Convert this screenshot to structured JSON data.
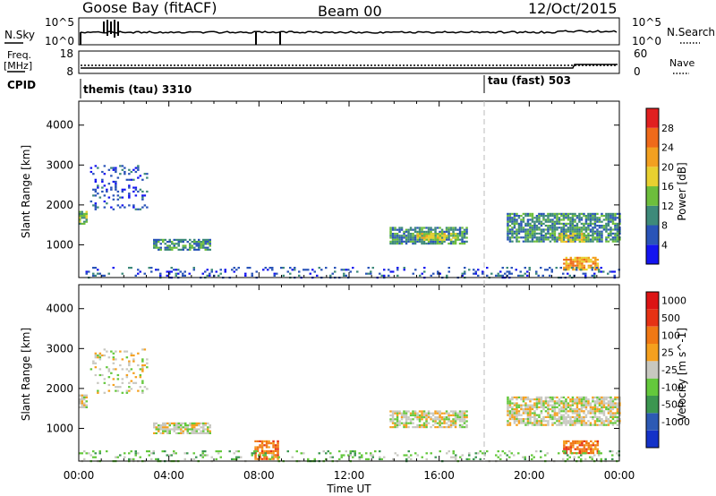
{
  "header": {
    "title": "Goose Bay (fitACF)",
    "beam": "Beam 00",
    "date": "12/Oct/2015"
  },
  "noise_panel": {
    "left_label": "N.Sky",
    "right_label": "N.Search",
    "left_ticks": [
      "10^5",
      "10^0"
    ],
    "right_ticks": [
      "10^5",
      "10^0"
    ]
  },
  "freq_panel": {
    "left_label_1": "Freq.",
    "left_label_2": "[MHz]",
    "right_label": "Nave",
    "left_ticks": [
      "18",
      "8"
    ],
    "right_ticks": [
      "60",
      "0"
    ]
  },
  "cpid": {
    "label": "CPID",
    "modes": [
      {
        "name": "themis (tau) 3310",
        "start_hour": 0
      },
      {
        "name": "tau (fast) 503",
        "start_hour": 18
      }
    ]
  },
  "chart_data": [
    {
      "type": "heatmap",
      "name": "power",
      "xlabel": "",
      "ylabel": "Slant Range [km]",
      "xlim": [
        0,
        24
      ],
      "ylim": [
        180,
        4600
      ],
      "y_ticks": [
        1000,
        2000,
        3000,
        4000
      ],
      "colorbar": {
        "label": "Power [dB]",
        "levels": [
          "4",
          "8",
          "12",
          "16",
          "20",
          "24",
          "28"
        ],
        "colors": [
          "#1414f0",
          "#2a54b8",
          "#3e8a7a",
          "#6dbe3c",
          "#e8d030",
          "#f2a020",
          "#ef6a1a",
          "#e02020"
        ]
      },
      "echo_regions": [
        {
          "t": [
            0.0,
            0.35
          ],
          "r": [
            1550,
            1850
          ],
          "level": 3
        },
        {
          "t": [
            0.5,
            3.0
          ],
          "r": [
            1900,
            3000
          ],
          "level": 1,
          "sparse": true
        },
        {
          "t": [
            3.3,
            5.8
          ],
          "r": [
            900,
            1150
          ],
          "level": 2
        },
        {
          "t": [
            13.8,
            17.2
          ],
          "r": [
            1050,
            1450
          ],
          "level": 2
        },
        {
          "t": [
            15.0,
            16.8
          ],
          "r": [
            1150,
            1300
          ],
          "level": 4
        },
        {
          "t": [
            19.0,
            24.0
          ],
          "r": [
            1100,
            1800
          ],
          "level": 2
        },
        {
          "t": [
            21.3,
            22.4
          ],
          "r": [
            1100,
            1300
          ],
          "level": 4
        },
        {
          "t": [
            21.5,
            23.0
          ],
          "r": [
            400,
            700
          ],
          "level": 5
        },
        {
          "t": [
            0.0,
            24.0
          ],
          "r": [
            180,
            450
          ],
          "level": 1,
          "sparse": true
        }
      ]
    },
    {
      "type": "heatmap",
      "name": "velocity",
      "xlabel": "Time UT",
      "ylabel": "Slant Range [km]",
      "xlim": [
        0,
        24
      ],
      "ylim": [
        180,
        4600
      ],
      "x_ticks": [
        "00:00",
        "04:00",
        "08:00",
        "12:00",
        "16:00",
        "20:00",
        "00:00"
      ],
      "y_ticks": [
        1000,
        2000,
        3000,
        4000
      ],
      "colorbar": {
        "label": "Velocity [m s^-1]",
        "levels": [
          "1000",
          "500",
          "100",
          "25",
          "-25",
          "-100",
          "-500",
          "-1000"
        ],
        "colors": [
          "#1432c8",
          "#2d5ab4",
          "#3c9650",
          "#64c83c",
          "#c8c8c0",
          "#f5a01e",
          "#f07814",
          "#e63214",
          "#dc1414"
        ]
      },
      "echo_regions": [
        {
          "t": [
            0.0,
            0.35
          ],
          "r": [
            1550,
            1850
          ],
          "level": 4
        },
        {
          "t": [
            0.5,
            3.0
          ],
          "r": [
            1900,
            3000
          ],
          "level": 4,
          "sparse": true
        },
        {
          "t": [
            3.3,
            5.8
          ],
          "r": [
            900,
            1150
          ],
          "level": 4
        },
        {
          "t": [
            13.8,
            17.2
          ],
          "r": [
            1050,
            1450
          ],
          "level": 4
        },
        {
          "t": [
            19.0,
            24.0
          ],
          "r": [
            1100,
            1800
          ],
          "level": 4
        },
        {
          "t": [
            21.5,
            23.0
          ],
          "r": [
            400,
            700
          ],
          "level": 6
        },
        {
          "t": [
            7.8,
            8.8
          ],
          "r": [
            250,
            700
          ],
          "level": 6
        },
        {
          "t": [
            0.0,
            24.0
          ],
          "r": [
            180,
            450
          ],
          "level": 3,
          "sparse": true
        }
      ]
    }
  ]
}
